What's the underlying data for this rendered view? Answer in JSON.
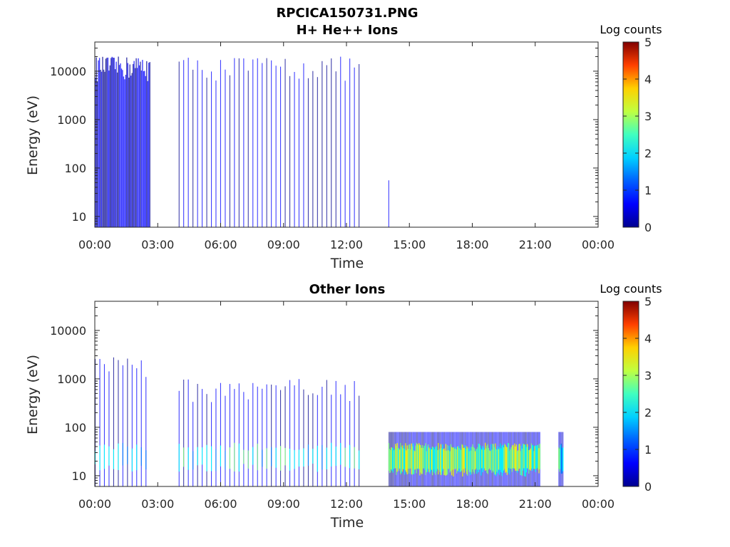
{
  "figure": {
    "filename": "RPCICA150731.PNG"
  },
  "colormap": [
    "#00008f",
    "#0000ff",
    "#0080ff",
    "#00ffff",
    "#80ff80",
    "#ffff00",
    "#ff8000",
    "#ff0000",
    "#800000"
  ],
  "chart_data": [
    {
      "type": "heatmap",
      "title": "H+ He++ Ions",
      "xlabel": "Time",
      "ylabel": "Energy (eV)",
      "x_ticks": [
        "00:00",
        "03:00",
        "06:00",
        "09:00",
        "12:00",
        "15:00",
        "18:00",
        "21:00",
        "00:00"
      ],
      "xlim_hours": [
        0,
        24
      ],
      "y_scale": "log",
      "y_ticks": [
        "10",
        "100",
        "1000",
        "10000"
      ],
      "ylim": [
        6,
        40000
      ],
      "colorbar": {
        "label": "Log counts",
        "ticks": [
          "0",
          "1",
          "2",
          "3",
          "4",
          "5"
        ],
        "range": [
          0,
          5
        ]
      },
      "data_segments": [
        {
          "t_start": 0.0,
          "t_end": 2.6,
          "e_min": 6,
          "e_max": 20000,
          "density": "dense",
          "log_counts_peak": 1.5
        },
        {
          "t_start": 4.0,
          "t_end": 12.7,
          "e_min": 6,
          "e_max": 20000,
          "density": "sparse stripes",
          "log_counts_peak": 1.0
        },
        {
          "t_start": 14.0,
          "t_end": 14.1,
          "e_min": 6,
          "e_max": 80,
          "density": "single stripe",
          "log_counts_peak": 0.5
        }
      ]
    },
    {
      "type": "heatmap",
      "title": "Other Ions",
      "xlabel": "Time",
      "ylabel": "Energy (eV)",
      "x_ticks": [
        "00:00",
        "03:00",
        "06:00",
        "09:00",
        "12:00",
        "15:00",
        "18:00",
        "21:00",
        "00:00"
      ],
      "xlim_hours": [
        0,
        24
      ],
      "y_scale": "log",
      "y_ticks": [
        "10",
        "100",
        "1000",
        "10000"
      ],
      "ylim": [
        6,
        40000
      ],
      "colorbar": {
        "label": "Log counts",
        "ticks": [
          "0",
          "1",
          "2",
          "3",
          "4",
          "5"
        ],
        "range": [
          0,
          5
        ]
      },
      "data_segments": [
        {
          "t_start": 0.0,
          "t_end": 2.6,
          "e_min": 6,
          "e_max": 3000,
          "density": "sparse",
          "log_counts_peak": 2.5,
          "band_e": [
            15,
            40
          ]
        },
        {
          "t_start": 4.0,
          "t_end": 12.7,
          "e_min": 6,
          "e_max": 1000,
          "density": "sparse",
          "log_counts_peak": 2.5,
          "band_e": [
            15,
            40
          ]
        },
        {
          "t_start": 14.0,
          "t_end": 21.2,
          "e_min": 6,
          "e_max": 80,
          "density": "continuous",
          "log_counts_peak": 3.2,
          "band_e": [
            12,
            40
          ]
        },
        {
          "t_start": 22.1,
          "t_end": 22.3,
          "e_min": 6,
          "e_max": 80,
          "density": "continuous",
          "log_counts_peak": 2.5,
          "band_e": [
            12,
            40
          ]
        }
      ]
    }
  ]
}
